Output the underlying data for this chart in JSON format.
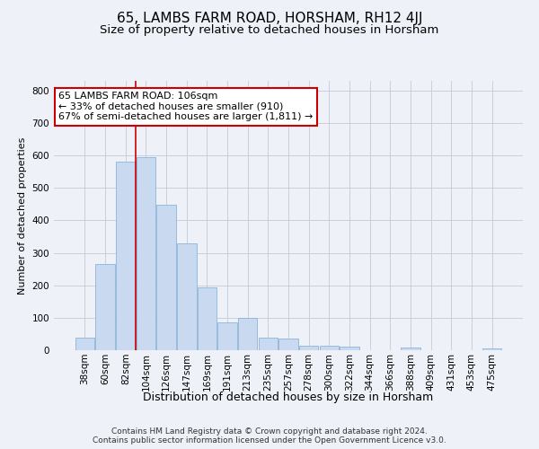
{
  "title": "65, LAMBS FARM ROAD, HORSHAM, RH12 4JJ",
  "subtitle": "Size of property relative to detached houses in Horsham",
  "xlabel": "Distribution of detached houses by size in Horsham",
  "ylabel": "Number of detached properties",
  "footer_line1": "Contains HM Land Registry data © Crown copyright and database right 2024.",
  "footer_line2": "Contains public sector information licensed under the Open Government Licence v3.0.",
  "categories": [
    "38sqm",
    "60sqm",
    "82sqm",
    "104sqm",
    "126sqm",
    "147sqm",
    "169sqm",
    "191sqm",
    "213sqm",
    "235sqm",
    "257sqm",
    "278sqm",
    "300sqm",
    "322sqm",
    "344sqm",
    "366sqm",
    "388sqm",
    "409sqm",
    "431sqm",
    "453sqm",
    "475sqm"
  ],
  "values": [
    40,
    265,
    580,
    595,
    447,
    330,
    195,
    85,
    100,
    40,
    35,
    15,
    15,
    10,
    0,
    0,
    8,
    0,
    0,
    0,
    5
  ],
  "bar_color": "#c9daf0",
  "bar_edge_color": "#8ab4d8",
  "grid_color": "#c8d0dc",
  "annotation_line1": "65 LAMBS FARM ROAD: 106sqm",
  "annotation_line2": "← 33% of detached houses are smaller (910)",
  "annotation_line3": "67% of semi-detached houses are larger (1,811) →",
  "annotation_box_color": "#ffffff",
  "annotation_box_edge_color": "#cc0000",
  "vline_color": "#cc0000",
  "vline_x_index": 2.5,
  "ylim": [
    0,
    830
  ],
  "yticks": [
    0,
    100,
    200,
    300,
    400,
    500,
    600,
    700,
    800
  ],
  "background_color": "#eef2f8",
  "title_fontsize": 11,
  "subtitle_fontsize": 9.5,
  "ylabel_fontsize": 8,
  "xlabel_fontsize": 9,
  "tick_fontsize": 7.5,
  "annotation_fontsize": 8,
  "footer_fontsize": 6.5
}
